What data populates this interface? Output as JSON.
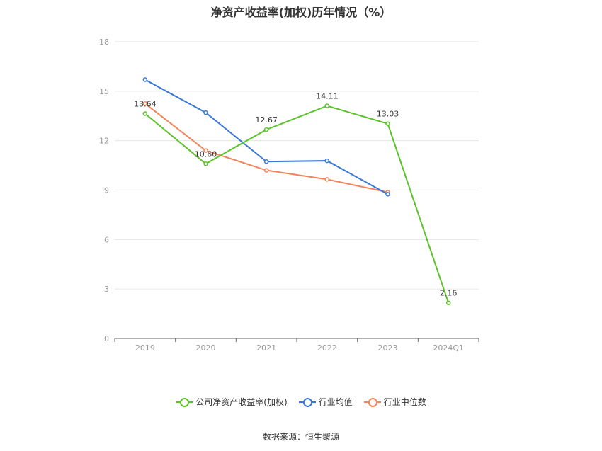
{
  "chart_data": {
    "type": "line",
    "title": "净资产收益率(加权)历年情况（%）",
    "categories": [
      "2019",
      "2020",
      "2021",
      "2022",
      "2023",
      "2024Q1"
    ],
    "ylim": [
      0,
      18
    ],
    "yticks": [
      0,
      3,
      6,
      9,
      12,
      15,
      18
    ],
    "grid": true,
    "legend_position": "bottom",
    "series": [
      {
        "name": "公司净资产收益率(加权)",
        "color": "#5cc22a",
        "values": [
          13.64,
          10.6,
          12.67,
          14.11,
          13.03,
          2.16
        ],
        "labels": [
          "13.64",
          "10.60",
          "12.67",
          "14.11",
          "13.03",
          "2.16"
        ]
      },
      {
        "name": "行业均值",
        "color": "#3a78d8",
        "values": [
          15.7,
          13.7,
          10.73,
          10.78,
          8.75,
          null
        ]
      },
      {
        "name": "行业中位数",
        "color": "#f0845a",
        "values": [
          14.25,
          11.4,
          10.2,
          9.65,
          8.87,
          null
        ]
      }
    ]
  },
  "source": "数据来源：恒生聚源"
}
